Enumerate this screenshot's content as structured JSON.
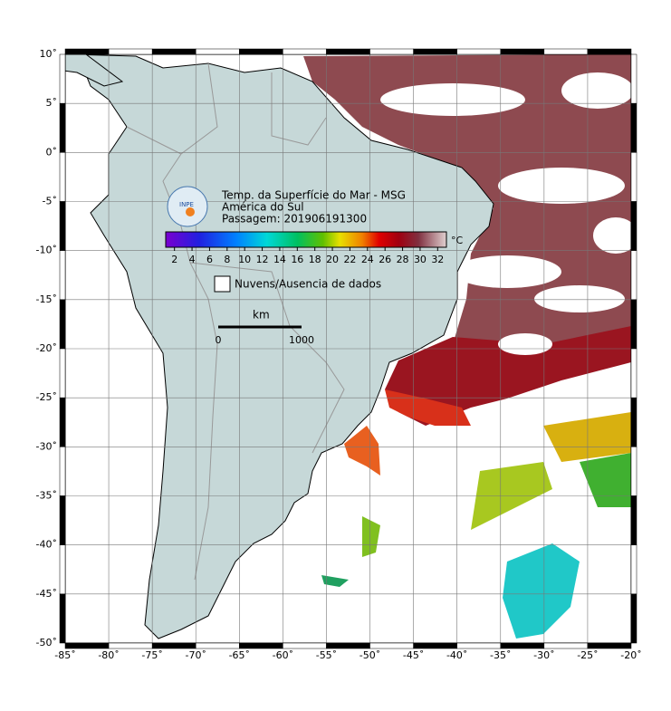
{
  "map": {
    "title": "Temp. da Superfície do Mar - MSG",
    "subtitle": "América do Sul",
    "pass": "Passagem: 201906191300",
    "logo": "INPE",
    "legend_cloud": "Nuvens/Ausencia de dados",
    "colorbar": {
      "unit": "°C",
      "range": [
        1,
        33
      ],
      "ticks": [
        2,
        4,
        6,
        8,
        10,
        12,
        14,
        16,
        18,
        20,
        22,
        24,
        26,
        28,
        30,
        32
      ]
    },
    "scale": {
      "unit": "km",
      "ticks": [
        0,
        1000
      ]
    },
    "lon_range": [
      -85,
      -20
    ],
    "lat_range": [
      -50,
      10
    ],
    "lon_ticks": [
      {
        "value": -85,
        "label": "-85˚"
      },
      {
        "value": -80,
        "label": "-80˚"
      },
      {
        "value": -75,
        "label": "-75˚"
      },
      {
        "value": -70,
        "label": "-70˚"
      },
      {
        "value": -65,
        "label": "-65˚"
      },
      {
        "value": -60,
        "label": "-60˚"
      },
      {
        "value": -55,
        "label": "-55˚"
      },
      {
        "value": -50,
        "label": "-50˚"
      },
      {
        "value": -45,
        "label": "-45˚"
      },
      {
        "value": -40,
        "label": "-40˚"
      },
      {
        "value": -35,
        "label": "-35˚"
      },
      {
        "value": -30,
        "label": "-30˚"
      },
      {
        "value": -25,
        "label": "-25˚"
      },
      {
        "value": -20,
        "label": "-20˚"
      }
    ],
    "lat_ticks": [
      {
        "value": 10,
        "label": "10˚"
      },
      {
        "value": 5,
        "label": "5˚"
      },
      {
        "value": 0,
        "label": "0˚"
      },
      {
        "value": -5,
        "label": "-5˚"
      },
      {
        "value": -10,
        "label": "-10˚"
      },
      {
        "value": -15,
        "label": "-15˚"
      },
      {
        "value": -20,
        "label": "-20˚"
      },
      {
        "value": -25,
        "label": "-25˚"
      },
      {
        "value": -30,
        "label": "-30˚"
      },
      {
        "value": -35,
        "label": "-35˚"
      },
      {
        "value": -40,
        "label": "-40˚"
      },
      {
        "value": -45,
        "label": "-45˚"
      },
      {
        "value": -50,
        "label": "-50˚"
      }
    ]
  }
}
